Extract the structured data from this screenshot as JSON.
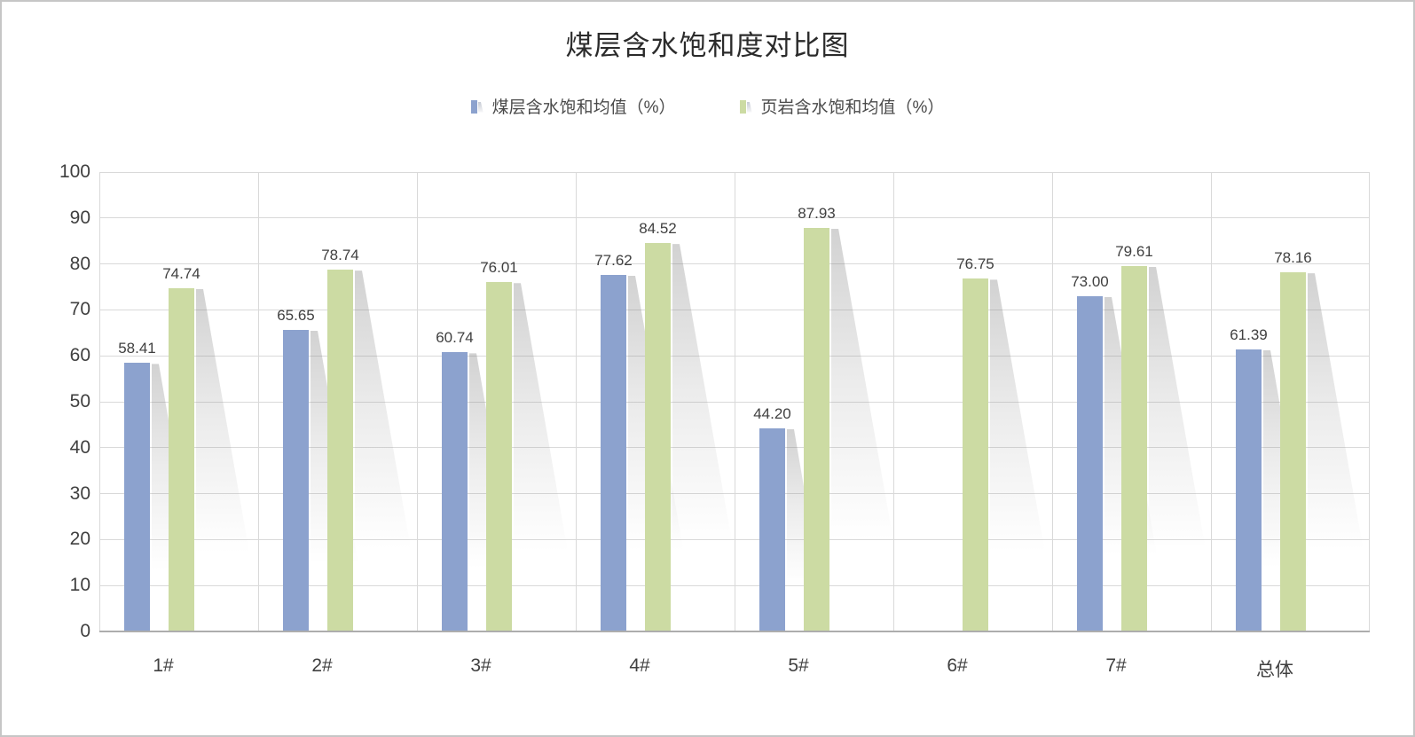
{
  "title": "煤层含水饱和度对比图",
  "legend": {
    "items": [
      {
        "label": "煤层含水饱和均值（%）",
        "color": "#8CA2CE"
      },
      {
        "label": "页岩含水饱和均值（%）",
        "color": "#CCDBA3"
      }
    ]
  },
  "y_axis": {
    "ticks": [
      "0",
      "10",
      "20",
      "30",
      "40",
      "50",
      "60",
      "70",
      "80",
      "90",
      "100"
    ]
  },
  "chart_data": {
    "type": "bar",
    "title": "煤层含水饱和度对比图",
    "categories": [
      "1#",
      "2#",
      "3#",
      "4#",
      "5#",
      "6#",
      "7#",
      "总体"
    ],
    "series": [
      {
        "name": "煤层含水饱和均值（%）",
        "color": "#8CA2CE",
        "values": [
          58.41,
          65.65,
          60.74,
          77.62,
          44.2,
          null,
          73.0,
          61.39
        ]
      },
      {
        "name": "页岩含水饱和均值（%）",
        "color": "#CCDBA3",
        "values": [
          74.74,
          78.74,
          76.01,
          84.52,
          87.93,
          76.75,
          79.61,
          78.16
        ]
      }
    ],
    "xlabel": "",
    "ylabel": "",
    "ylim": [
      0,
      100
    ],
    "ytick_step": 10,
    "grid": true,
    "legend_position": "top",
    "value_labels": true,
    "value_label_format": "2-decimals"
  },
  "colors": {
    "series1": "#8CA2CE",
    "series2": "#CCDBA3",
    "gridline": "#D9D9D9",
    "axis_line": "#ADADAD",
    "text": "#404040",
    "title_text": "#2B2B2B",
    "frame_border": "#C6C6C6",
    "shadow": "#BFBFBF"
  }
}
